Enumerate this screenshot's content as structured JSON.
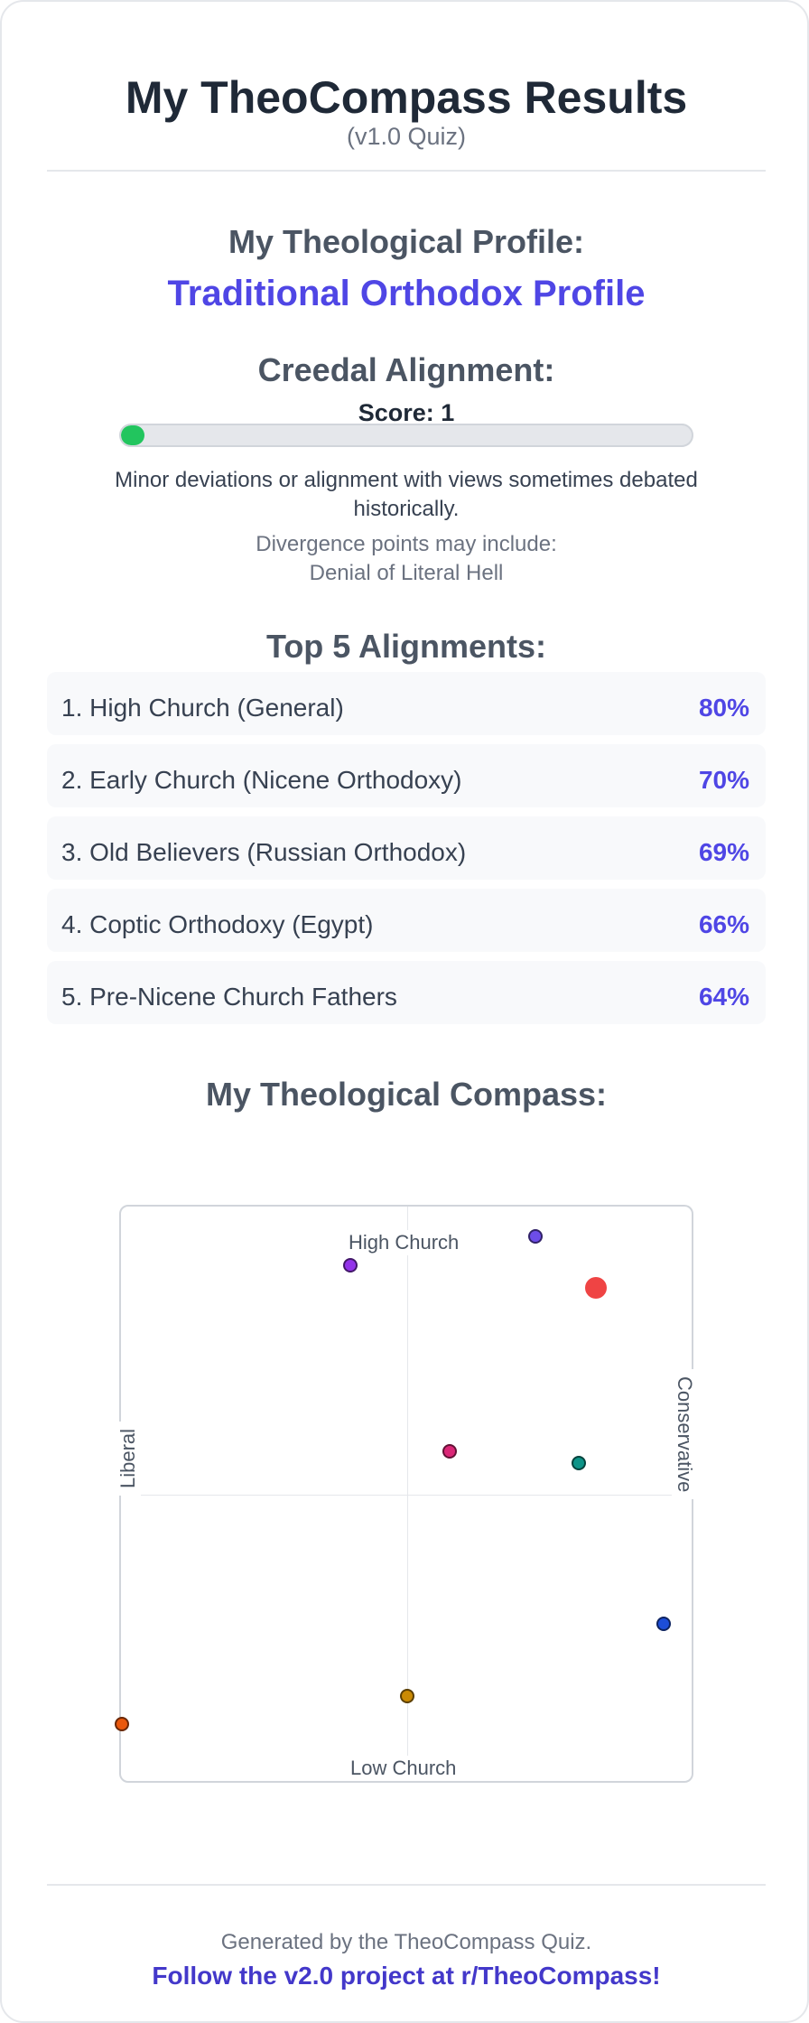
{
  "header": {
    "title": "My TheoCompass Results",
    "subtitle": "(v1.0 Quiz)"
  },
  "profile": {
    "heading": "My Theological Profile:",
    "name": "Traditional Orthodox Profile"
  },
  "creedal": {
    "heading": "Creedal Alignment:",
    "score_text": "Score: 1",
    "bar_fraction": 0.03,
    "bar_color": "#22c55e",
    "description": "Minor deviations or alignment with views sometimes debated historically.",
    "divergence_label": "Divergence points may include:",
    "divergence_item": "Denial of Literal Hell"
  },
  "top5": {
    "heading": "Top 5 Alignments:",
    "items": [
      {
        "label": "1. High Church (General)",
        "percent": "80%"
      },
      {
        "label": "2. Early Church (Nicene Orthodoxy)",
        "percent": "70%"
      },
      {
        "label": "3. Old Believers (Russian Orthodox)",
        "percent": "69%"
      },
      {
        "label": "4. Coptic Orthodoxy (Egypt)",
        "percent": "66%"
      },
      {
        "label": "5. Pre-Nicene Church Fathers",
        "percent": "64%"
      }
    ]
  },
  "compass": {
    "heading": "My Theological Compass:",
    "labels": {
      "top": "High Church",
      "bottom": "Low Church",
      "left": "Liberal",
      "right": "Conservative"
    },
    "points": [
      {
        "x": -0.2,
        "y": 0.8,
        "color": "#9333ea",
        "size": "sm"
      },
      {
        "x": 0.45,
        "y": 0.9,
        "color": "#6d4de8",
        "size": "sm"
      },
      {
        "x": 0.66,
        "y": 0.72,
        "color": "#ef4444",
        "size": "lg"
      },
      {
        "x": 0.15,
        "y": 0.15,
        "color": "#db2777",
        "size": "sm"
      },
      {
        "x": 0.6,
        "y": 0.11,
        "color": "#0d9488",
        "size": "sm"
      },
      {
        "x": 0.9,
        "y": -0.45,
        "color": "#1d4ed8",
        "size": "sm"
      },
      {
        "x": 0.0,
        "y": -0.7,
        "color": "#ca8a04",
        "size": "sm"
      },
      {
        "x": -1.0,
        "y": -0.8,
        "color": "#ea580c",
        "size": "sm"
      }
    ]
  },
  "footer": {
    "text": "Generated by the TheoCompass Quiz.",
    "link": "Follow the v2.0 project at r/TheoCompass!"
  }
}
